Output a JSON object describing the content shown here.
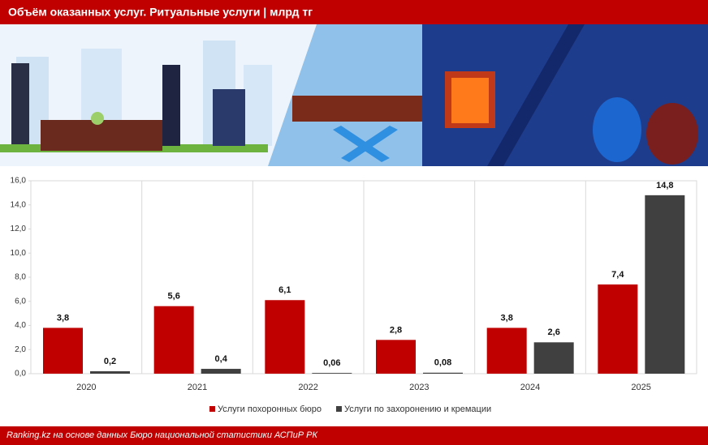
{
  "chart_data": {
    "type": "bar",
    "title": "Объём оказанных услуг. Ритуальные услуги | млрд тг",
    "source": "Ranking.kz на основе данных Бюро национальной статистики АСПиР РК",
    "categories": [
      "2020",
      "2021",
      "2022",
      "2023",
      "2024",
      "2025"
    ],
    "series": [
      {
        "name": "Услуги похоронных бюро",
        "color": "#c00000",
        "values": [
          3.8,
          5.6,
          6.1,
          2.8,
          3.8,
          7.4
        ],
        "value_labels": [
          "3,8",
          "5,6",
          "6,1",
          "2,8",
          "3,8",
          "7,4"
        ]
      },
      {
        "name": "Услуги по захоронению и кремации",
        "color": "#404040",
        "values": [
          0.2,
          0.4,
          0.06,
          0.08,
          2.6,
          14.8
        ],
        "value_labels": [
          "0,2",
          "0,4",
          "0,06",
          "0,08",
          "2,6",
          "14,8"
        ]
      }
    ],
    "ylim": [
      0,
      16
    ],
    "yticks": [
      {
        "value": 0,
        "label": "0,0"
      },
      {
        "value": 2,
        "label": "2,0"
      },
      {
        "value": 4,
        "label": "4,0"
      },
      {
        "value": 6,
        "label": "6,0"
      },
      {
        "value": 8,
        "label": "8,0"
      },
      {
        "value": 10,
        "label": "10,0"
      },
      {
        "value": 12,
        "label": "12,0"
      },
      {
        "value": 14,
        "label": "14,0"
      },
      {
        "value": 16,
        "label": "16,0"
      }
    ],
    "grid": false,
    "legend": "bottom"
  }
}
